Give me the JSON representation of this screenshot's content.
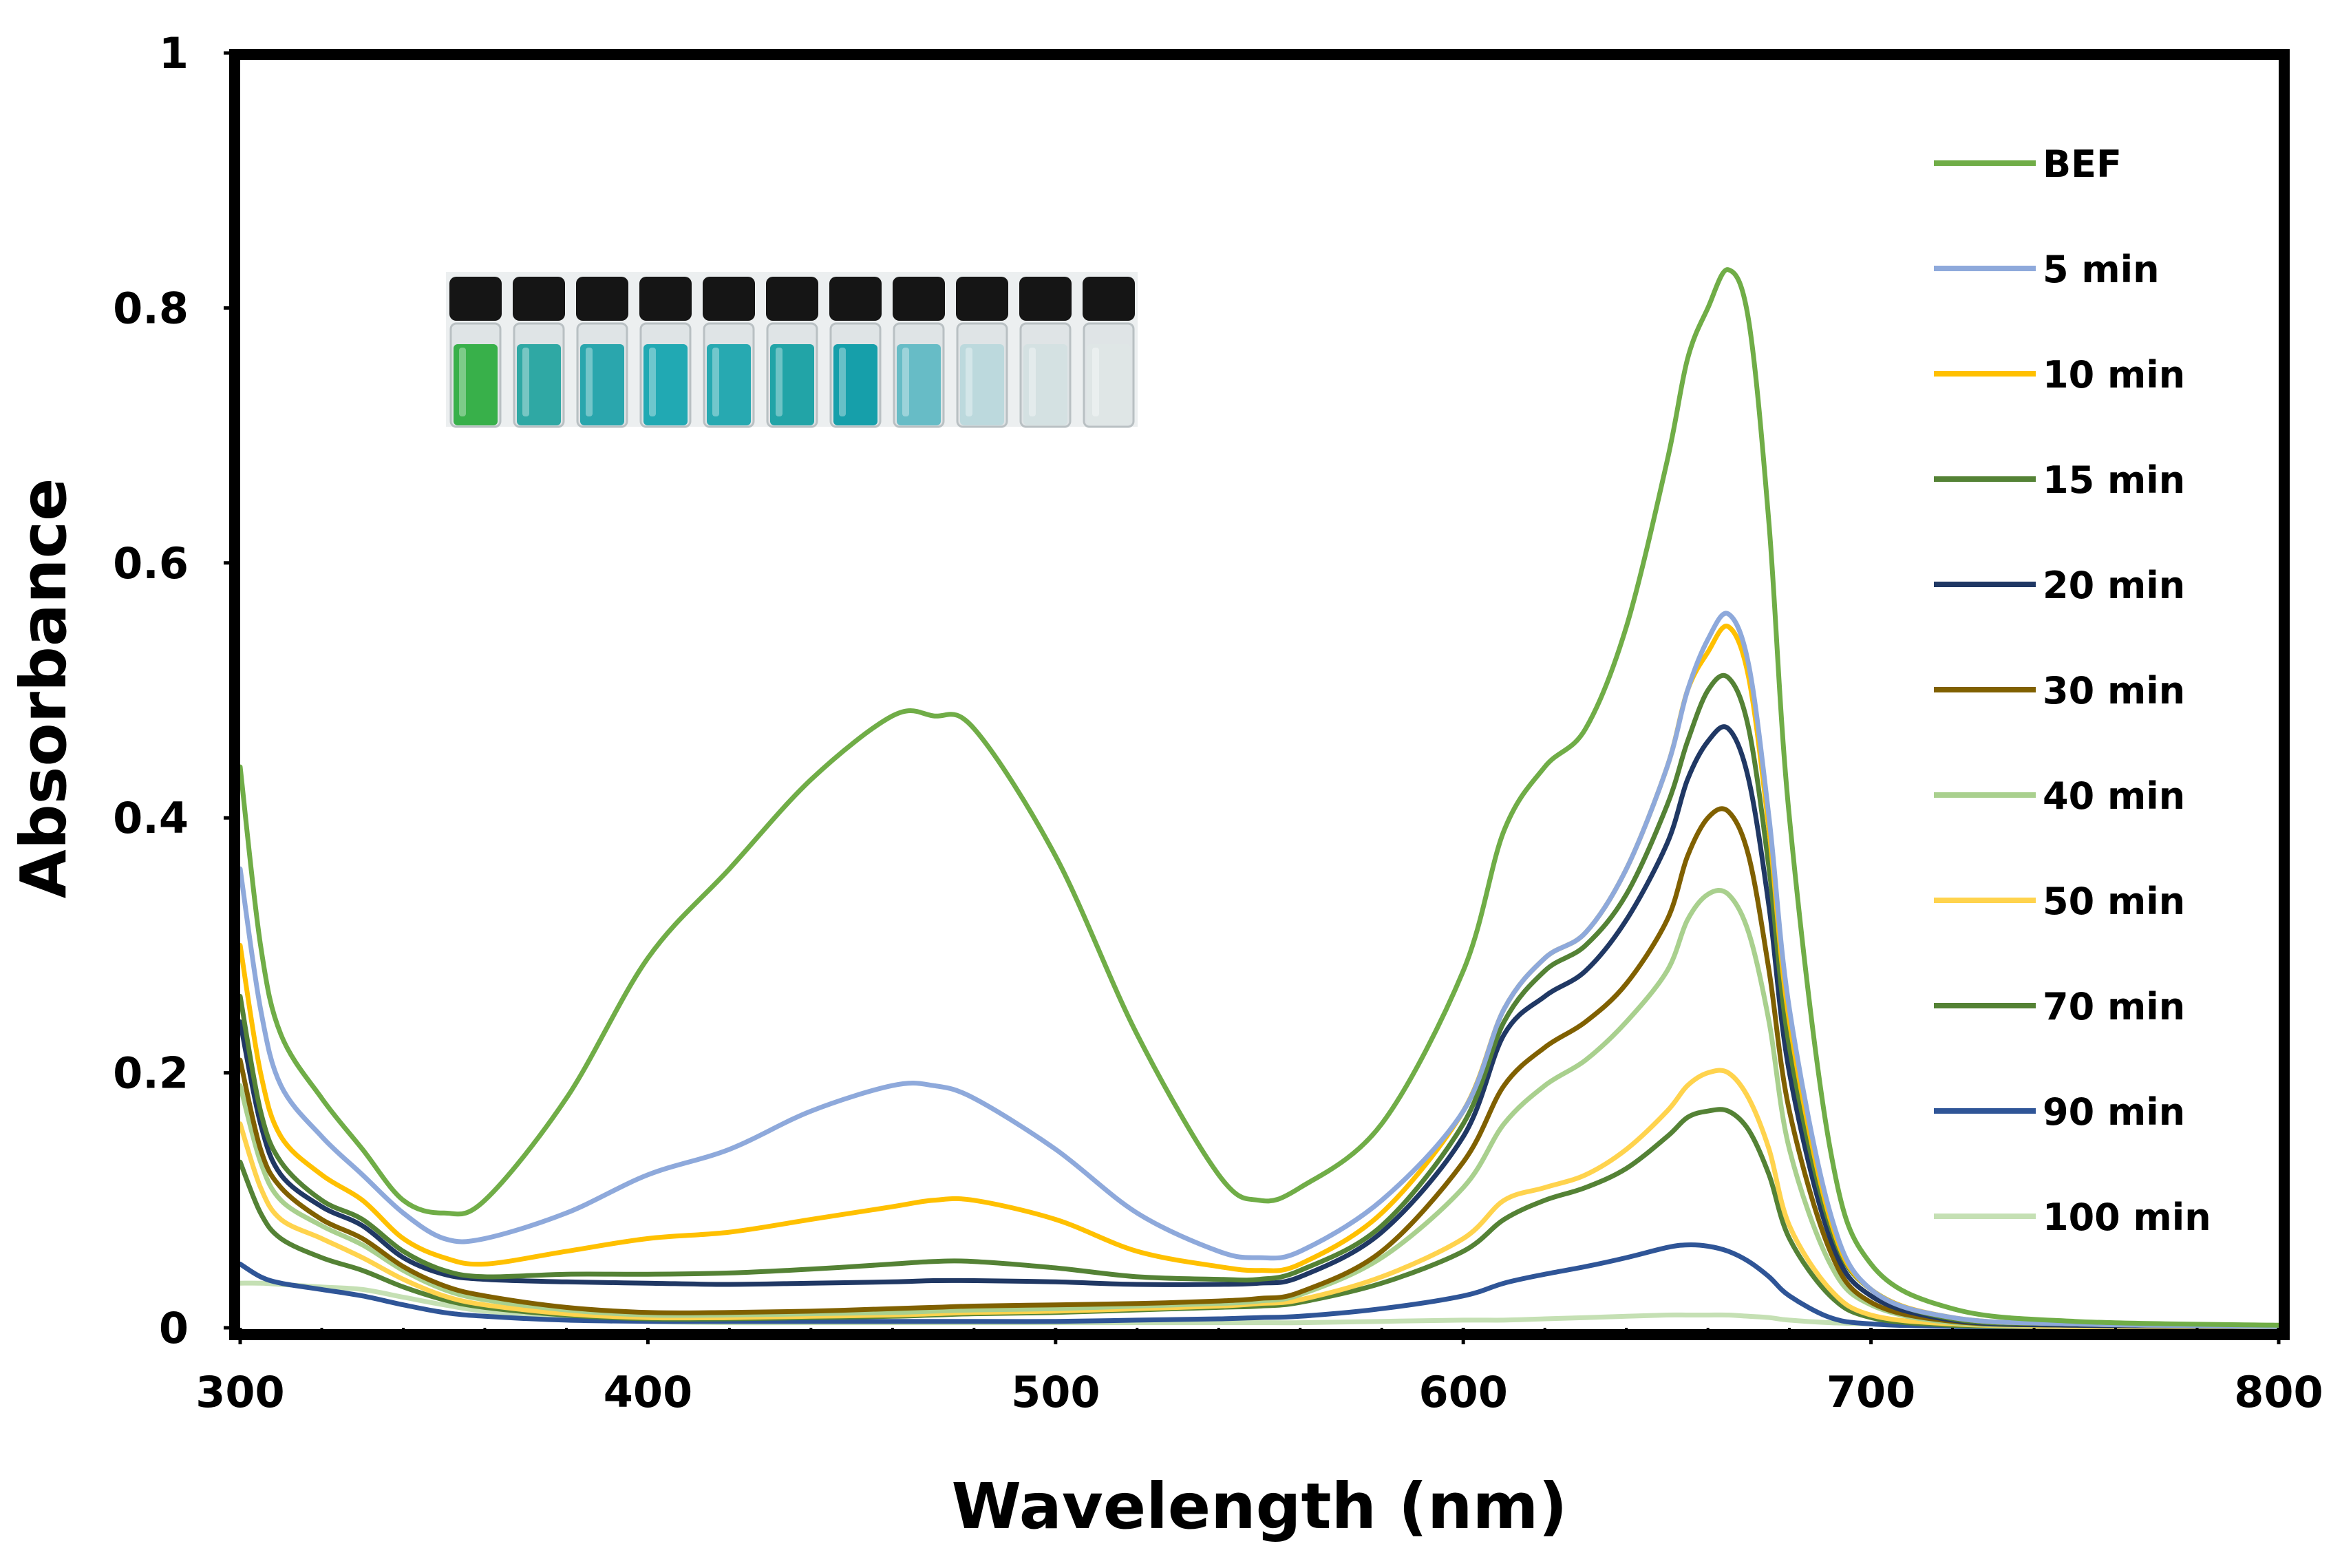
{
  "chart_data": {
    "type": "line",
    "title": "",
    "xlabel": "Wavelength (nm)",
    "ylabel": "Absorbance",
    "xlim": [
      300,
      800
    ],
    "ylim": [
      0,
      1
    ],
    "xticks": [
      300,
      400,
      500,
      600,
      700,
      800
    ],
    "yticks": [
      0,
      0.2,
      0.4,
      0.6,
      0.8,
      1
    ],
    "xtick_labels": [
      "300",
      "400",
      "500",
      "600",
      "700",
      "800"
    ],
    "ytick_labels": [
      "0",
      "0.2",
      "0.4",
      "0.6",
      "0.8",
      "1"
    ],
    "grid": false,
    "legend_position": "right",
    "inset": "photo of eleven vials, green to turquoise to clear",
    "x": [
      300,
      305,
      310,
      320,
      330,
      340,
      350,
      360,
      380,
      400,
      420,
      440,
      460,
      470,
      480,
      500,
      520,
      540,
      550,
      560,
      580,
      600,
      610,
      620,
      630,
      640,
      650,
      655,
      660,
      665,
      670,
      675,
      680,
      690,
      700,
      720,
      750,
      800
    ],
    "series": [
      {
        "name": "BEF",
        "color": "#70AD47",
        "values": [
          0.44,
          0.3,
          0.23,
          0.18,
          0.14,
          0.1,
          0.09,
          0.1,
          0.18,
          0.29,
          0.36,
          0.43,
          0.48,
          0.48,
          0.47,
          0.37,
          0.23,
          0.12,
          0.1,
          0.11,
          0.16,
          0.28,
          0.39,
          0.44,
          0.47,
          0.55,
          0.68,
          0.76,
          0.8,
          0.83,
          0.79,
          0.63,
          0.4,
          0.14,
          0.05,
          0.015,
          0.005,
          0.002
        ]
      },
      {
        "name": "5 min",
        "color": "#8EA9DB",
        "values": [
          0.36,
          0.25,
          0.19,
          0.15,
          0.12,
          0.09,
          0.07,
          0.07,
          0.09,
          0.12,
          0.14,
          0.17,
          0.19,
          0.19,
          0.18,
          0.14,
          0.09,
          0.06,
          0.055,
          0.06,
          0.1,
          0.17,
          0.25,
          0.29,
          0.31,
          0.36,
          0.44,
          0.5,
          0.54,
          0.56,
          0.52,
          0.4,
          0.25,
          0.09,
          0.03,
          0.008,
          0.003,
          0.001
        ]
      },
      {
        "name": "10 min",
        "color": "#FFC000",
        "values": [
          0.3,
          0.2,
          0.15,
          0.12,
          0.1,
          0.07,
          0.055,
          0.05,
          0.06,
          0.07,
          0.075,
          0.085,
          0.095,
          0.1,
          0.1,
          0.085,
          0.06,
          0.048,
          0.045,
          0.05,
          0.09,
          0.17,
          0.25,
          0.29,
          0.31,
          0.36,
          0.44,
          0.5,
          0.53,
          0.55,
          0.51,
          0.39,
          0.24,
          0.085,
          0.03,
          0.008,
          0.003,
          0.001
        ]
      },
      {
        "name": "15 min",
        "color": "#548235",
        "values": [
          0.26,
          0.17,
          0.13,
          0.1,
          0.085,
          0.06,
          0.045,
          0.04,
          0.042,
          0.042,
          0.043,
          0.046,
          0.05,
          0.052,
          0.052,
          0.047,
          0.04,
          0.038,
          0.038,
          0.045,
          0.08,
          0.16,
          0.24,
          0.28,
          0.3,
          0.34,
          0.41,
          0.46,
          0.5,
          0.51,
          0.47,
          0.36,
          0.22,
          0.08,
          0.03,
          0.007,
          0.003,
          0.001
        ]
      },
      {
        "name": "20 min",
        "color": "#203864",
        "values": [
          0.24,
          0.16,
          0.12,
          0.095,
          0.08,
          0.055,
          0.042,
          0.038,
          0.036,
          0.035,
          0.034,
          0.035,
          0.036,
          0.037,
          0.037,
          0.036,
          0.034,
          0.034,
          0.035,
          0.04,
          0.075,
          0.15,
          0.23,
          0.26,
          0.28,
          0.32,
          0.38,
          0.43,
          0.46,
          0.47,
          0.43,
          0.33,
          0.2,
          0.07,
          0.025,
          0.006,
          0.002,
          0.001
        ]
      },
      {
        "name": "30 min",
        "color": "#806000",
        "values": [
          0.21,
          0.14,
          0.11,
          0.085,
          0.07,
          0.048,
          0.033,
          0.025,
          0.016,
          0.012,
          0.012,
          0.013,
          0.015,
          0.016,
          0.017,
          0.018,
          0.019,
          0.021,
          0.023,
          0.028,
          0.06,
          0.13,
          0.19,
          0.22,
          0.24,
          0.27,
          0.32,
          0.37,
          0.4,
          0.405,
          0.37,
          0.28,
          0.17,
          0.06,
          0.02,
          0.005,
          0.002,
          0.001
        ]
      },
      {
        "name": "40 min",
        "color": "#A9D08E",
        "values": [
          0.19,
          0.13,
          0.1,
          0.08,
          0.065,
          0.045,
          0.03,
          0.022,
          0.014,
          0.01,
          0.01,
          0.011,
          0.012,
          0.013,
          0.014,
          0.015,
          0.017,
          0.019,
          0.021,
          0.026,
          0.055,
          0.11,
          0.16,
          0.19,
          0.21,
          0.24,
          0.28,
          0.32,
          0.34,
          0.34,
          0.31,
          0.24,
          0.14,
          0.05,
          0.018,
          0.004,
          0.002,
          0.001
        ]
      },
      {
        "name": "50 min",
        "color": "#FFD34D",
        "values": [
          0.16,
          0.11,
          0.085,
          0.07,
          0.055,
          0.038,
          0.025,
          0.018,
          0.011,
          0.008,
          0.008,
          0.009,
          0.01,
          0.011,
          0.012,
          0.013,
          0.015,
          0.017,
          0.019,
          0.022,
          0.04,
          0.07,
          0.1,
          0.11,
          0.12,
          0.14,
          0.17,
          0.19,
          0.2,
          0.2,
          0.18,
          0.14,
          0.08,
          0.03,
          0.01,
          0.003,
          0.001,
          0.001
        ]
      },
      {
        "name": "70 min",
        "color": "#548235",
        "values": [
          0.13,
          0.09,
          0.07,
          0.055,
          0.045,
          0.032,
          0.022,
          0.016,
          0.01,
          0.007,
          0.007,
          0.008,
          0.009,
          0.01,
          0.011,
          0.012,
          0.014,
          0.016,
          0.017,
          0.02,
          0.035,
          0.06,
          0.085,
          0.1,
          0.11,
          0.125,
          0.15,
          0.165,
          0.17,
          0.17,
          0.155,
          0.12,
          0.07,
          0.025,
          0.008,
          0.002,
          0.001,
          0.001
        ]
      },
      {
        "name": "90 min",
        "color": "#2F5597",
        "values": [
          0.05,
          0.04,
          0.035,
          0.03,
          0.025,
          0.018,
          0.012,
          0.009,
          0.006,
          0.005,
          0.005,
          0.005,
          0.005,
          0.005,
          0.005,
          0.005,
          0.006,
          0.007,
          0.008,
          0.009,
          0.015,
          0.025,
          0.035,
          0.042,
          0.048,
          0.055,
          0.063,
          0.065,
          0.064,
          0.06,
          0.052,
          0.04,
          0.025,
          0.008,
          0.003,
          0.001,
          0.001,
          0.001
        ]
      },
      {
        "name": "100 min",
        "color": "#C5E0B4",
        "values": [
          0.035,
          0.035,
          0.034,
          0.032,
          0.03,
          0.024,
          0.018,
          0.013,
          0.008,
          0.005,
          0.004,
          0.004,
          0.004,
          0.004,
          0.004,
          0.004,
          0.004,
          0.004,
          0.004,
          0.004,
          0.005,
          0.006,
          0.006,
          0.007,
          0.008,
          0.009,
          0.01,
          0.01,
          0.01,
          0.01,
          0.009,
          0.008,
          0.006,
          0.004,
          0.003,
          0.002,
          0.001,
          0.001
        ]
      }
    ]
  },
  "inset_vials": {
    "liquid_colors": [
      "#38b04a",
      "#2fa8a4",
      "#2aa6ad",
      "#21a9b3",
      "#27a9b1",
      "#22a4a7",
      "#169faa",
      "#67bcc6",
      "#bcd9dd",
      "#d4e1e2",
      "#dfe6e6"
    ]
  }
}
